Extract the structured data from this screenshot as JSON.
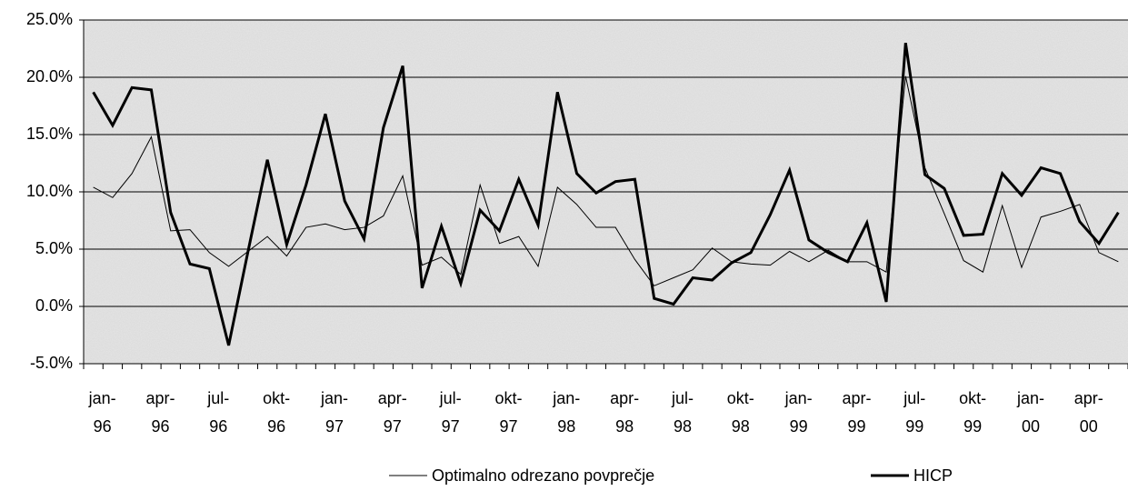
{
  "chart_data": {
    "type": "line",
    "categories": [
      "jan-96",
      null,
      null,
      "apr-96",
      null,
      null,
      "jul-96",
      null,
      null,
      "okt-96",
      null,
      null,
      "jan-97",
      null,
      null,
      "apr-97",
      null,
      null,
      "jul-97",
      null,
      null,
      "okt-97",
      null,
      null,
      "jan-98",
      null,
      null,
      "apr-98",
      null,
      null,
      "jul-98",
      null,
      null,
      "okt-98",
      null,
      null,
      "jan-99",
      null,
      null,
      "apr-99",
      null,
      null,
      "jul-99",
      null,
      null,
      "okt-99",
      null,
      null,
      "jan-00",
      null,
      null,
      "apr-00",
      null,
      null
    ],
    "series": [
      {
        "name": "Optimalno odrezano povprečje",
        "color": "#000000",
        "width": 1,
        "values": [
          10.4,
          9.5,
          11.6,
          14.8,
          6.6,
          6.7,
          4.7,
          3.5,
          4.8,
          6.1,
          4.4,
          6.9,
          7.2,
          6.7,
          6.9,
          7.9,
          11.4,
          3.6,
          4.3,
          2.8,
          10.6,
          5.5,
          6.1,
          3.5,
          10.4,
          8.9,
          6.9,
          6.9,
          4.1,
          1.8,
          2.5,
          3.2,
          5.1,
          3.9,
          3.7,
          3.6,
          4.8,
          3.9,
          4.9,
          3.9,
          3.9,
          3.0,
          20.1,
          12.1,
          8.1,
          4.0,
          3.0,
          8.8,
          3.4,
          7.8,
          8.3,
          8.9,
          4.7,
          3.9
        ]
      },
      {
        "name": "HICP",
        "color": "#000000",
        "width": 3,
        "values": [
          18.7,
          15.8,
          19.1,
          18.9,
          8.2,
          3.7,
          3.3,
          -3.4,
          4.8,
          12.8,
          5.4,
          10.6,
          16.8,
          9.2,
          5.9,
          15.6,
          21.0,
          1.6,
          7.0,
          2.0,
          8.4,
          6.6,
          11.1,
          7.1,
          18.7,
          11.6,
          9.9,
          10.9,
          11.1,
          0.7,
          0.2,
          2.5,
          2.3,
          3.8,
          4.7,
          8.0,
          11.9,
          5.8,
          4.7,
          3.9,
          7.3,
          0.4,
          23.0,
          11.5,
          10.3,
          6.2,
          6.3,
          11.6,
          9.7,
          12.1,
          11.6,
          7.4,
          5.5,
          8.2
        ]
      }
    ],
    "ylim": [
      -5,
      25
    ],
    "yticks": [
      {
        "value": -5,
        "label": "-5.0%"
      },
      {
        "value": 0,
        "label": "0.0%"
      },
      {
        "value": 5,
        "label": "5.0%"
      },
      {
        "value": 10,
        "label": "10.0%"
      },
      {
        "value": 15,
        "label": "15.0%"
      },
      {
        "value": 20,
        "label": "20.0%"
      },
      {
        "value": 25,
        "label": "25.0%"
      }
    ],
    "grid": true,
    "legend": "bottom"
  }
}
